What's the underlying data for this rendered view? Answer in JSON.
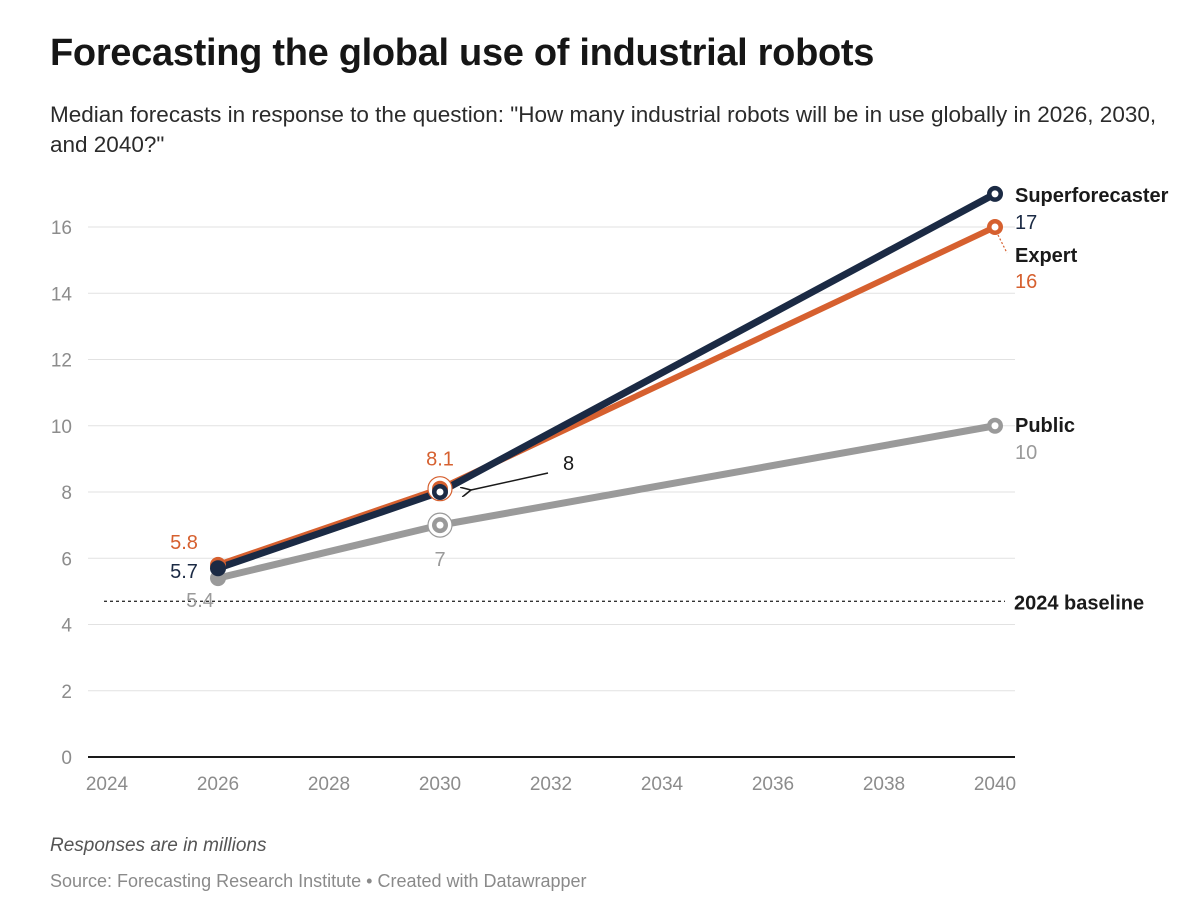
{
  "title": "Forecasting the global use of industrial robots",
  "subtitle": "Median forecasts in response to the question: \"How many industrial robots will be in use globally in 2026, 2030, and 2040?\"",
  "notes": "Responses are in millions",
  "source": "Source: Forecasting Research Institute • Created with Datawrapper",
  "chart_data": {
    "type": "line",
    "xlim": [
      2024,
      2040
    ],
    "ylim": [
      0,
      16
    ],
    "x_ticks": [
      2024,
      2026,
      2028,
      2030,
      2032,
      2034,
      2036,
      2038,
      2040
    ],
    "y_ticks": [
      0,
      2,
      4,
      6,
      8,
      10,
      12,
      14,
      16
    ],
    "grid": "horizontal",
    "legend": "direct labels at line ends",
    "series": [
      {
        "name": "Public",
        "color": "#9a9a9a",
        "x": [
          2026,
          2030,
          2040
        ],
        "y": [
          5.4,
          7,
          10
        ],
        "labels": [
          "5.4",
          "7",
          "10"
        ]
      },
      {
        "name": "Expert",
        "color": "#d6602f",
        "x": [
          2026,
          2030,
          2040
        ],
        "y": [
          5.8,
          8.1,
          16
        ],
        "labels": [
          "5.8",
          "8.1",
          "16"
        ]
      },
      {
        "name": "Superforecaster",
        "color": "#1b2a44",
        "x": [
          2026,
          2030,
          2040
        ],
        "y": [
          5.7,
          8,
          17
        ],
        "labels": [
          "5.7",
          "8",
          "17"
        ]
      }
    ],
    "reference_line": {
      "label": "2024 baseline",
      "y": 4.7,
      "style": "dotted"
    }
  }
}
